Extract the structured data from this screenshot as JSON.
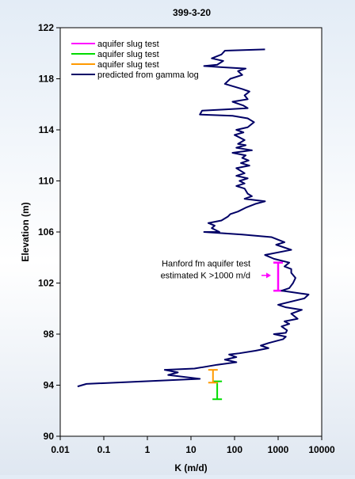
{
  "chart_data": {
    "type": "line",
    "title": "399-3-20",
    "xlabel": "K (m/d)",
    "ylabel": "Elevation (m)",
    "xscale": "log",
    "xlim": [
      0.01,
      10000
    ],
    "ylim": [
      90,
      122
    ],
    "x_ticks": [
      0.01,
      0.1,
      1,
      10,
      100,
      1000,
      10000
    ],
    "x_tick_labels": [
      "0.01",
      "0.1",
      "1",
      "10",
      "100",
      "1000",
      "10000"
    ],
    "y_ticks": [
      90,
      94,
      98,
      102,
      106,
      110,
      114,
      118,
      122
    ],
    "y_tick_labels": [
      "90",
      "94",
      "98",
      "102",
      "106",
      "110",
      "114",
      "118",
      "122"
    ],
    "grid": false,
    "legend_position": "top-left",
    "legend": [
      {
        "label": "aquifer slug test",
        "color": "#ff00ff"
      },
      {
        "label": "aquifer slug test",
        "color": "#00dd00"
      },
      {
        "label": "aquifer slug test",
        "color": "#ff9900"
      },
      {
        "label": "predicted from gamma log",
        "color": "#000066"
      }
    ],
    "series": [
      {
        "name": "predicted from gamma log",
        "color": "#000066",
        "points": [
          [
            500,
            120.3
          ],
          [
            60,
            120.2
          ],
          [
            50,
            119.9
          ],
          [
            30,
            119.6
          ],
          [
            55,
            119.4
          ],
          [
            40,
            119.1
          ],
          [
            20,
            119.0
          ],
          [
            55,
            118.9
          ],
          [
            180,
            118.8
          ],
          [
            120,
            118.6
          ],
          [
            150,
            118.3
          ],
          [
            80,
            118.0
          ],
          [
            60,
            117.6
          ],
          [
            150,
            117.2
          ],
          [
            220,
            117.0
          ],
          [
            170,
            116.7
          ],
          [
            200,
            116.4
          ],
          [
            90,
            116.2
          ],
          [
            160,
            115.9
          ],
          [
            200,
            115.7
          ],
          [
            60,
            115.6
          ],
          [
            18,
            115.5
          ],
          [
            16,
            115.2
          ],
          [
            90,
            115.1
          ],
          [
            200,
            114.9
          ],
          [
            280,
            114.6
          ],
          [
            200,
            114.2
          ],
          [
            110,
            114.0
          ],
          [
            160,
            113.8
          ],
          [
            100,
            113.6
          ],
          [
            170,
            113.2
          ],
          [
            120,
            112.9
          ],
          [
            180,
            112.8
          ],
          [
            110,
            112.6
          ],
          [
            250,
            112.4
          ],
          [
            90,
            112.2
          ],
          [
            180,
            112.0
          ],
          [
            150,
            111.8
          ],
          [
            210,
            111.6
          ],
          [
            140,
            111.4
          ],
          [
            220,
            111.2
          ],
          [
            110,
            111.0
          ],
          [
            170,
            110.6
          ],
          [
            110,
            110.4
          ],
          [
            200,
            110.2
          ],
          [
            130,
            110.0
          ],
          [
            170,
            109.8
          ],
          [
            110,
            109.6
          ],
          [
            170,
            109.4
          ],
          [
            200,
            109.0
          ],
          [
            250,
            108.8
          ],
          [
            170,
            108.6
          ],
          [
            500,
            108.4
          ],
          [
            300,
            108.2
          ],
          [
            180,
            107.9
          ],
          [
            120,
            107.6
          ],
          [
            80,
            107.4
          ],
          [
            70,
            107.2
          ],
          [
            50,
            106.9
          ],
          [
            25,
            106.7
          ],
          [
            35,
            106.5
          ],
          [
            30,
            106.3
          ],
          [
            45,
            106.0
          ],
          [
            20,
            106.0
          ],
          [
            150,
            105.8
          ],
          [
            700,
            105.6
          ],
          [
            1400,
            105.2
          ],
          [
            900,
            105.0
          ],
          [
            2000,
            104.6
          ],
          [
            500,
            104.2
          ],
          [
            800,
            103.9
          ],
          [
            1800,
            103.6
          ],
          [
            1400,
            103.3
          ],
          [
            2000,
            103.1
          ],
          [
            2000,
            102.8
          ],
          [
            2500,
            102.4
          ],
          [
            2200,
            102.0
          ],
          [
            1800,
            101.6
          ],
          [
            1200,
            101.4
          ],
          [
            5000,
            101.1
          ],
          [
            4000,
            100.8
          ],
          [
            1000,
            100.3
          ],
          [
            1500,
            100.1
          ],
          [
            3500,
            99.9
          ],
          [
            2000,
            99.6
          ],
          [
            2800,
            99.2
          ],
          [
            1400,
            99.0
          ],
          [
            1800,
            98.8
          ],
          [
            1200,
            98.6
          ],
          [
            1600,
            98.3
          ],
          [
            1500,
            98.1
          ],
          [
            800,
            98.0
          ],
          [
            1500,
            97.8
          ],
          [
            1300,
            97.6
          ],
          [
            1000,
            97.5
          ],
          [
            600,
            97.3
          ],
          [
            400,
            97.1
          ],
          [
            600,
            96.9
          ],
          [
            300,
            96.7
          ],
          [
            130,
            96.5
          ],
          [
            75,
            96.4
          ],
          [
            110,
            96.2
          ],
          [
            60,
            96.0
          ],
          [
            110,
            95.8
          ],
          [
            40,
            95.6
          ],
          [
            12,
            95.3
          ],
          [
            2.5,
            95.2
          ],
          [
            5,
            95.0
          ],
          [
            3,
            94.8
          ],
          [
            16,
            94.5
          ],
          [
            0.04,
            94.1
          ],
          [
            0.025,
            93.9
          ]
        ]
      }
    ],
    "error_bars": [
      {
        "name": "aquifer slug test",
        "color": "#ff00ff",
        "x": 1000,
        "y_low": 101.4,
        "y_high": 103.6
      },
      {
        "name": "aquifer slug test",
        "color": "#00dd00",
        "x": 40,
        "y_low": 92.9,
        "y_high": 94.3
      },
      {
        "name": "aquifer slug test",
        "color": "#ff9900",
        "x": 32,
        "y_low": 94.2,
        "y_high": 95.2
      }
    ],
    "annotation": {
      "lines": [
        "Hanford fm aquifer test",
        "estimated K >1000 m/d"
      ],
      "arrow_color": "#ff00ff"
    }
  }
}
